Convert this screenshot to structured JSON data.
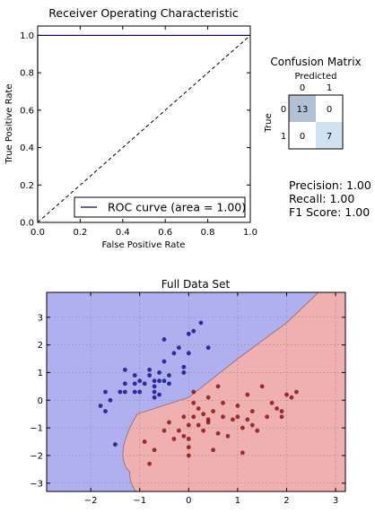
{
  "roc": {
    "title": "Receiver Operating Characteristic",
    "xlabel": "False Positive Rate",
    "ylabel": "True Positive Rate",
    "legend_label": "ROC curve (area = 1.00)",
    "x_ticks": [
      "0.0",
      "0.2",
      "0.4",
      "0.6",
      "0.8",
      "1.0"
    ],
    "y_ticks": [
      "0.0",
      "0.2",
      "0.4",
      "0.6",
      "0.8",
      "1.0"
    ],
    "curve_color": "#00007f",
    "chance_color": "#000000"
  },
  "confusion": {
    "title": "Confusion Matrix",
    "xlabel": "Predicted",
    "ylabel": "True",
    "col_labels": [
      "0",
      "1"
    ],
    "row_labels": [
      "0",
      "1"
    ],
    "cells": [
      [
        "13",
        "0"
      ],
      [
        "0",
        "7"
      ]
    ],
    "colors": [
      [
        "#b3c1d4",
        "#ffffff"
      ],
      [
        "#ffffff",
        "#cfe3f1"
      ]
    ]
  },
  "metrics": {
    "precision": "Precision: 1.00",
    "recall": "Recall: 1.00",
    "f1": "F1 Score: 1.00"
  },
  "scatter": {
    "title": "Full Data Set",
    "x_ticks": [
      "−2",
      "−1",
      "0",
      "1",
      "2",
      "3"
    ],
    "y_ticks": [
      "−3",
      "−2",
      "−1",
      "0",
      "1",
      "2",
      "3"
    ],
    "region_colors": {
      "class0": "#b0b0f0",
      "class1": "#f0b0b0"
    },
    "point_colors": {
      "class0": "#00007f",
      "class1": "#7f0000"
    }
  },
  "chart_data": [
    {
      "type": "line",
      "title": "Receiver Operating Characteristic",
      "xlabel": "False Positive Rate",
      "ylabel": "True Positive Rate",
      "xlim": [
        0,
        1
      ],
      "ylim": [
        0,
        1.05
      ],
      "grid": false,
      "legend_position": "bottom-right",
      "series": [
        {
          "name": "ROC curve (area = 1.00)",
          "x": [
            0,
            0,
            1
          ],
          "y": [
            0,
            1,
            1
          ]
        },
        {
          "x": [
            0,
            1
          ],
          "y": [
            0,
            1
          ]
        }
      ]
    },
    {
      "type": "heatmap",
      "title": "Confusion Matrix",
      "xlabel": "Predicted",
      "ylabel": "True",
      "x_categories": [
        "0",
        "1"
      ],
      "y_categories": [
        "0",
        "1"
      ],
      "values": [
        [
          13,
          0
        ],
        [
          0,
          7
        ]
      ]
    },
    {
      "type": "scatter",
      "title": "Full Data Set",
      "xlim": [
        -2.9,
        3.2
      ],
      "ylim": [
        -3.3,
        3.9
      ],
      "grid": true,
      "decision_boundary": {
        "class0_region": "left/upper",
        "class1_region": "right/lower",
        "vertex": [
          -1.2,
          -2.6
        ],
        "upper_arm": [
          [
            -1.05,
            -0.5
          ],
          [
            0,
            0.1
          ],
          [
            1,
            1.5
          ],
          [
            2,
            2.8
          ],
          [
            2.65,
            3.9
          ]
        ],
        "lower_arm": [
          [
            -1.08,
            -3.3
          ]
        ]
      },
      "series": [
        {
          "x": [
            -1.8,
            -1.7,
            -1.6,
            -1.7,
            -1.4,
            -1.3,
            -1.3,
            -1.3,
            -1.1,
            -1.1,
            -1.1,
            -1.0,
            -1.0,
            -0.9,
            -0.8,
            -0.8,
            -0.7,
            -0.7,
            -0.7,
            -0.7,
            -0.6,
            -0.6,
            -0.6,
            -0.5,
            -0.5,
            -0.5,
            -0.4,
            -0.4,
            -0.3,
            -0.2,
            -0.1,
            -0.1,
            0.0,
            0.0,
            0.1,
            0.25,
            0.4,
            -1.5
          ],
          "y": [
            -0.2,
            0.3,
            0.0,
            -0.4,
            0.3,
            1.1,
            0.6,
            0.3,
            0.9,
            0.6,
            0.3,
            0.7,
            0.3,
            0.6,
            1.1,
            0.9,
            0.7,
            0.5,
            0.3,
            0.1,
            1.0,
            0.7,
            0.2,
            2.2,
            1.4,
            0.7,
            0.9,
            0.6,
            1.7,
            1.9,
            1.2,
            1.0,
            2.4,
            1.7,
            2.5,
            2.8,
            1.9,
            -1.6
          ]
        },
        {
          "x": [
            -0.9,
            -0.8,
            -0.7,
            -0.5,
            -0.4,
            -0.3,
            -0.2,
            -0.1,
            -0.1,
            0.0,
            0.0,
            0.0,
            0.0,
            0.1,
            0.1,
            0.1,
            0.2,
            0.2,
            0.3,
            0.3,
            0.4,
            0.4,
            0.5,
            0.6,
            0.6,
            0.7,
            0.7,
            0.8,
            0.9,
            1.0,
            1.0,
            1.1,
            1.1,
            1.2,
            1.2,
            1.3,
            1.3,
            1.4,
            1.5,
            1.6,
            1.7,
            1.8,
            1.9,
            1.9,
            2.0,
            2.1,
            2.2,
            0.4,
            0.5
          ],
          "y": [
            -1.5,
            -2.3,
            -1.8,
            -1.1,
            -0.8,
            -1.4,
            -1.1,
            -1.3,
            -0.6,
            -1.4,
            -1.7,
            -0.9,
            -2.0,
            -0.1,
            0.3,
            -0.6,
            -0.9,
            -0.3,
            -0.5,
            -1.1,
            -0.7,
            0.1,
            -0.4,
            0.5,
            -1.2,
            -0.1,
            -0.6,
            -1.3,
            -0.7,
            -0.2,
            -0.6,
            -1.9,
            -1.0,
            -0.7,
            0.2,
            -0.4,
            -0.9,
            -1.1,
            0.5,
            -0.6,
            -0.1,
            -0.3,
            -0.4,
            -0.6,
            0.2,
            0.1,
            0.3,
            -0.8,
            -1.8
          ]
        }
      ]
    }
  ]
}
